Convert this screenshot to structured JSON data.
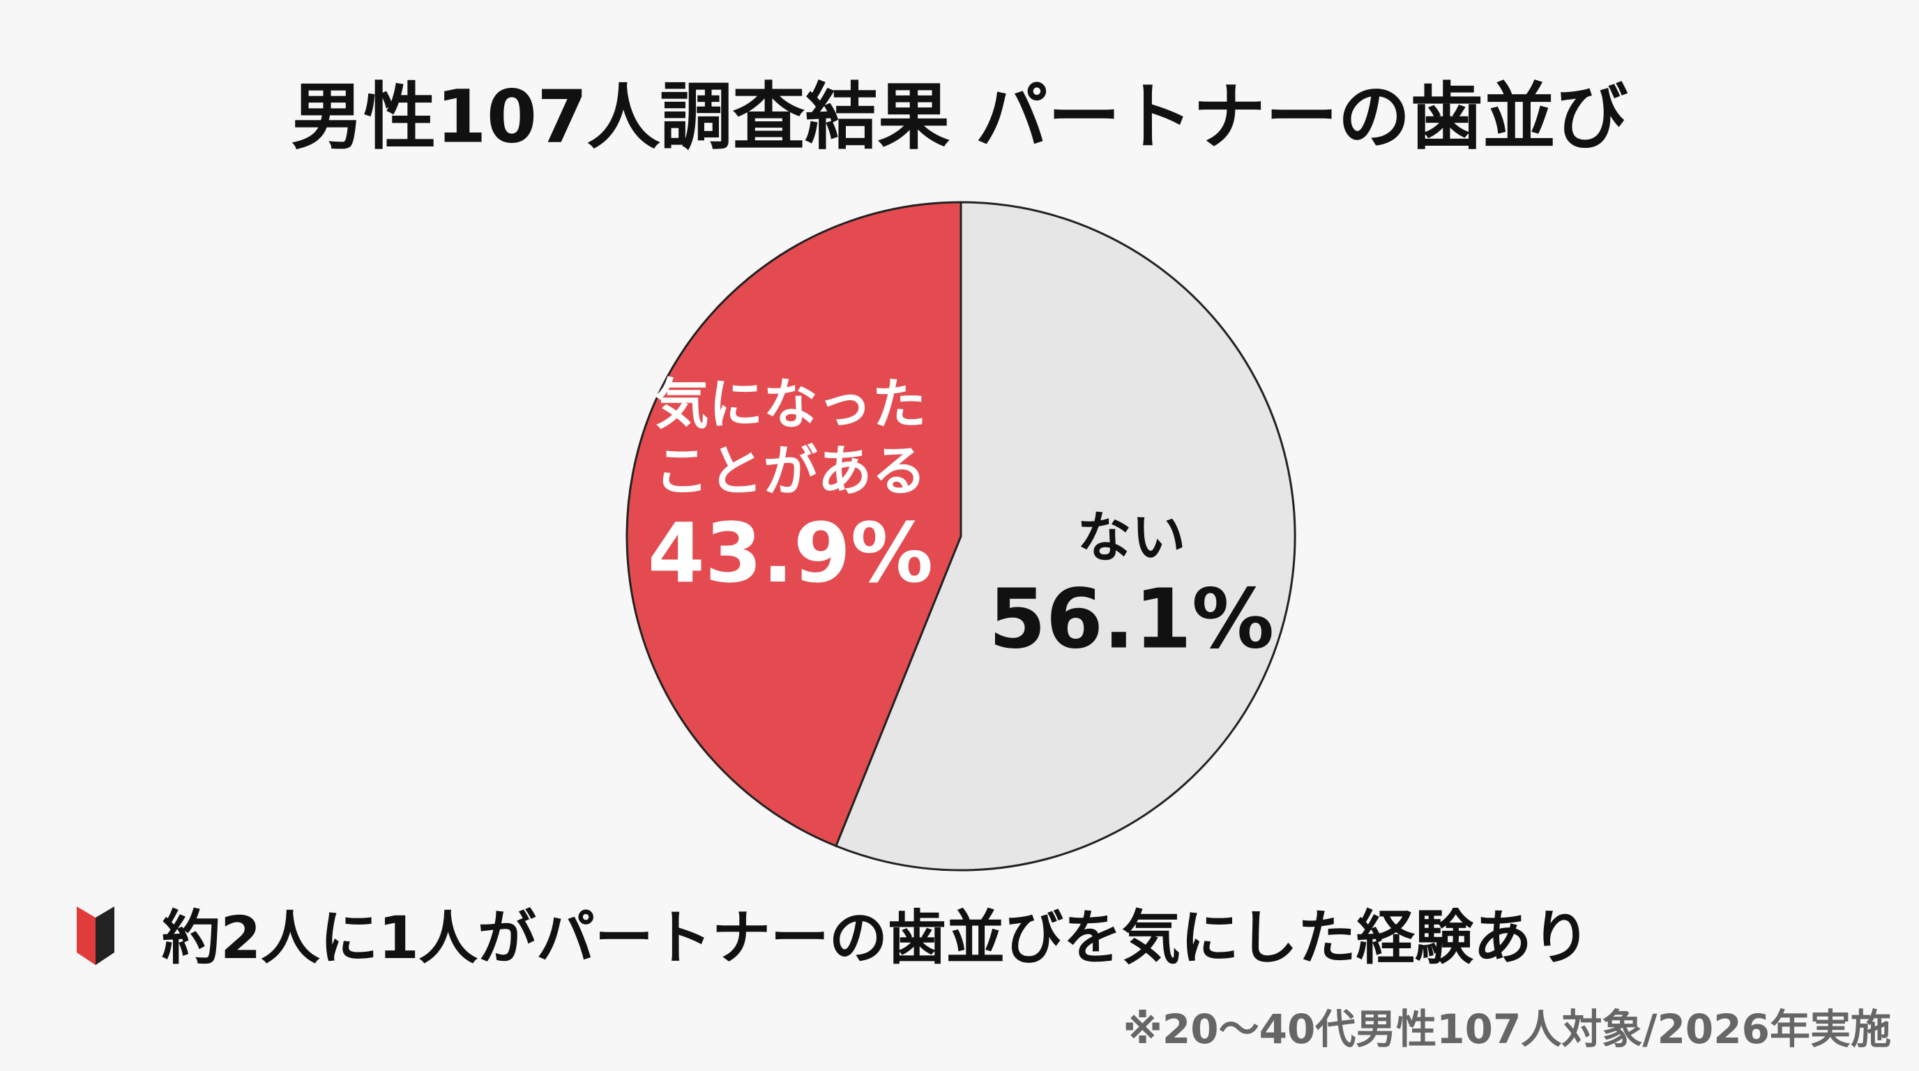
{
  "chart_data": {
    "type": "pie",
    "title": "男性107人調査結果 パートナーの歯並び",
    "categories": [
      "ない",
      "気になった\nことがある"
    ],
    "values": [
      56.1,
      43.9
    ],
    "value_labels": [
      "56.1%",
      "43.9%"
    ],
    "colors": [
      "#e6e6e6",
      "#e34b50"
    ],
    "start_angle": 0,
    "direction": "clockwise"
  },
  "headline": "約2人に1人がパートナーの歯並びを気にした経験あり",
  "footnote": "※20〜40代男性107人対象/2026年実施"
}
